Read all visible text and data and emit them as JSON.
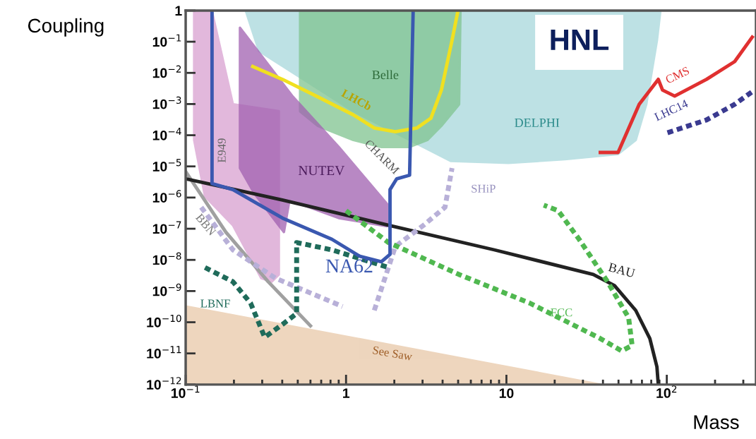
{
  "chart_data": {
    "type": "line",
    "title": "HNL",
    "xlabel": "Mass",
    "ylabel": "Coupling",
    "log": "xy",
    "grid": false,
    "marker": "none",
    "xlim": [
      0.1,
      360
    ],
    "ylim": [
      1e-12,
      1
    ],
    "xticks": [
      {
        "value": 0.1,
        "label": "10$^{−1}$"
      },
      1,
      10,
      {
        "value": 100,
        "label": "10$^{2}$"
      }
    ],
    "yticks": [
      {
        "value": 1e-12,
        "label": "10$^{−12}$"
      },
      {
        "value": 1e-11,
        "label": "10$^{−11}$"
      },
      {
        "value": 1e-10,
        "label": "10$^{−10}$"
      },
      {
        "value": 1e-09,
        "label": "10$^{−9}$"
      },
      {
        "value": 1e-08,
        "label": "10$^{−8}$"
      },
      {
        "value": 1e-07,
        "label": "10$^{−7}$"
      },
      {
        "value": 1e-06,
        "label": "10$^{−6}$"
      },
      {
        "value": 1e-05,
        "label": "10$^{−5}$"
      },
      {
        "value": 0.0001,
        "label": "10$^{−4}$"
      },
      {
        "value": 0.001,
        "label": "10$^{−3}$"
      },
      {
        "value": 0.01,
        "label": "10$^{−2}$"
      },
      {
        "value": 0.1,
        "label": "10$^{−1}$"
      },
      1
    ],
    "series": [
      {
        "type": "area",
        "color": "#e8c8a8",
        "x": [
          0.1,
          38.5,
          0.1
        ],
        "values": [
          3.2e-10,
          1e-12,
          1e-12
        ]
      },
      {
        "type": "area",
        "color": "#a8d8dc",
        "x": [
          0.237,
          0.287,
          0.544,
          1.11,
          2.03,
          4.49,
          10.3,
          23.2,
          49.7,
          64,
          74.5,
          86.8,
          91.2
        ],
        "values": [
          1,
          0.05,
          0.0062,
          0.00059,
          0.00012,
          1.5e-05,
          1.3e-05,
          1.7e-05,
          2.5e-05,
          7e-05,
          0.00098,
          0.11,
          1
        ]
      },
      {
        "type": "area",
        "color": "#80c490",
        "x": [
          0.517,
          0.517,
          0.667,
          1.11,
          1.66,
          2.49,
          3.21,
          3.93,
          5.07,
          5.17
        ],
        "values": [
          1,
          0.00058,
          0.0002,
          7e-05,
          4.2e-05,
          4.2e-05,
          7e-05,
          0.0002,
          0.00098,
          1
        ]
      },
      {
        "type": "area",
        "color": "#d8a0d0",
        "x": [
          0.113,
          0.146,
          0.197,
          0.381,
          0.381,
          0.344,
          0.296,
          0.197,
          0.132,
          0.113
        ],
        "values": [
          0.9,
          0.9,
          0.00098,
          0.00059,
          3.4e-09,
          2e-09,
          2.6e-09,
          1.3e-07,
          1.1e-06,
          7e-05
        ]
      },
      {
        "type": "area",
        "color": "#a060b0",
        "x": [
          0.218,
          0.467,
          0.9,
          1.8,
          1.8,
          0.9,
          0.444,
          0.41,
          0.267,
          0.218
        ],
        "values": [
          0.28,
          0.0017,
          4.2e-05,
          6.3e-07,
          1.2e-07,
          2.2e-07,
          8.3e-07,
          7.8e-08,
          1.4e-06,
          8.8e-06
        ]
      },
      {
        "color": "#a0a0a0",
        "x": [
          0.1,
          0.178,
          0.327,
          0.6
        ],
        "values": [
          6.8e-06,
          7.8e-08,
          2e-09,
          7.7e-11
        ]
      },
      {
        "color": "#f0e020",
        "x": [
          0.262,
          0.401,
          0.667,
          1.11,
          1.5,
          2.03,
          2.76,
          3.38,
          3.93,
          4.58,
          4.97
        ],
        "values": [
          0.016,
          0.0062,
          0.0017,
          0.00045,
          0.00017,
          0.00013,
          0.00017,
          0.00035,
          0.0028,
          0.11,
          0.9
        ]
      },
      {
        "color": "#222222",
        "x": [
          0.1,
          0.401,
          1.84,
          8.4,
          34.8,
          47.2,
          64,
          78.4,
          86.8,
          88.5
        ],
        "values": [
          4e-06,
          8.3e-07,
          1.3e-07,
          2.1e-08,
          3.4e-09,
          1.5e-09,
          2.4e-10,
          3e-11,
          3.7e-12,
          1e-12
        ]
      },
      {
        "color": "#b8b0d8",
        "line_style": "dotted",
        "x": [
          0.125,
          0.197,
          0.362,
          0.95,
          null,
          1.5,
          2.03,
          3.05,
          4.14,
          4.58
        ],
        "values": [
          4.9e-07,
          2.1e-08,
          2.6e-09,
          3.2e-10,
          null,
          2.4e-10,
          2.7e-08,
          1.3e-07,
          4.9e-07,
          8.8e-06
        ]
      },
      {
        "color": "#1f6b5a",
        "line_style": "dotted",
        "x": [
          0.132,
          0.197,
          0.254,
          0.311,
          0.401,
          0.492,
          0.492,
          0.816,
          1.84
        ],
        "values": [
          5.7e-09,
          2e-09,
          4.1e-10,
          3.3e-11,
          8.5e-11,
          1.9e-10,
          3.6e-08,
          2.1e-08,
          5.7e-09
        ]
      },
      {
        "color": "#50b850",
        "line_style": "dotted",
        "x": [
          1.0,
          1.84,
          5.07,
          14,
          38.5,
          52.3,
          60.8,
          57.8,
          42.7,
          28.4,
          21,
          17.1
        ],
        "values": [
          3.8e-07,
          3.6e-08,
          3.4e-09,
          4.1e-10,
          3e-11,
          1.2e-11,
          1.8e-11,
          1.4e-10,
          2e-09,
          4.6e-08,
          3.8e-07,
          5.7e-07
        ]
      },
      {
        "color": "#3a58b0",
        "x": [
          0.146,
          0.146,
          0.197,
          0.401,
          0.816,
          1.22,
          1.66,
          1.88,
          1.88,
          2.07,
          2.49,
          2.62
        ],
        "values": [
          0.9,
          2.8e-06,
          1.8e-06,
          2.2e-07,
          4.6e-08,
          1.3e-08,
          8.7e-09,
          1.5e-08,
          1.8e-06,
          4e-06,
          5.2e-06,
          0.9
        ]
      },
      {
        "color": "#e03030",
        "x": [
          38.5,
          49.7,
          67.3,
          88.5,
          94.1,
          112,
          177,
          265,
          341
        ],
        "values": [
          2.8e-05,
          2.8e-05,
          0.00098,
          0.0062,
          0.0028,
          0.0018,
          0.0062,
          0.023,
          0.14
        ]
      },
      {
        "color": "#3a3a90",
        "line_style": "dotted",
        "x": [
          101,
          177,
          265,
          352
        ],
        "values": [
          0.00012,
          0.00031,
          0.00098,
          0.0028
        ]
      }
    ],
    "annotations": [
      "Belle",
      "LHCb",
      "DELPHI",
      "NUTEV",
      "CHARM",
      "E949",
      "SHiP",
      "BBN",
      "LBNF",
      "FCC",
      "BAU",
      "See Saw",
      "CMS",
      "LHC14",
      "NA62"
    ]
  }
}
